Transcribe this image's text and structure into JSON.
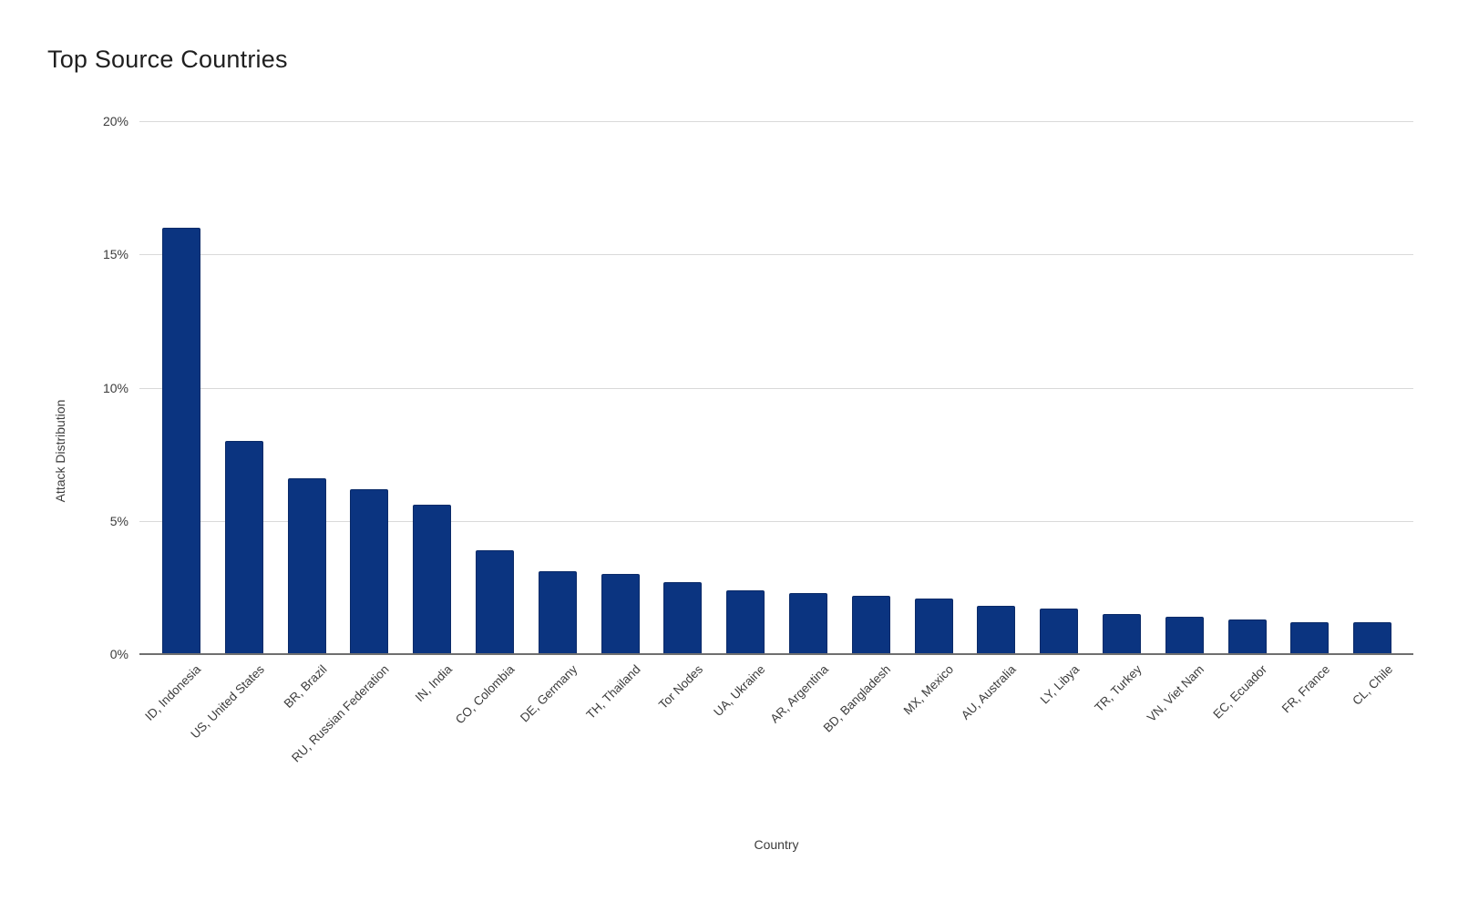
{
  "chart_data": {
    "type": "bar",
    "title": "Top Source Countries",
    "xlabel": "Country",
    "ylabel": "Attack Distribution",
    "ylim": [
      0,
      20
    ],
    "y_ticks": [
      {
        "value": 0,
        "label": "0%"
      },
      {
        "value": 5,
        "label": "5%"
      },
      {
        "value": 10,
        "label": "10%"
      },
      {
        "value": 15,
        "label": "15%"
      },
      {
        "value": 20,
        "label": "20%"
      }
    ],
    "grid": true,
    "legend": "none",
    "bar_color": "#0b3480",
    "categories": [
      "ID, Indonesia",
      "US, United States",
      "BR, Brazil",
      "RU, Russian Federation",
      "IN, India",
      "CO, Colombia",
      "DE, Germany",
      "TH, Thailand",
      "Tor Nodes",
      "UA, Ukraine",
      "AR, Argentina",
      "BD, Bangladesh",
      "MX, Mexico",
      "AU, Australia",
      "LY, Libya",
      "TR, Turkey",
      "VN, Viet Nam",
      "EC, Ecuador",
      "FR, France",
      "CL, Chile"
    ],
    "values": [
      16.0,
      8.0,
      6.6,
      6.2,
      5.6,
      3.9,
      3.1,
      3.0,
      2.7,
      2.4,
      2.3,
      2.2,
      2.1,
      1.8,
      1.7,
      1.5,
      1.4,
      1.3,
      1.2,
      1.2
    ]
  },
  "style": {
    "background": "#ffffff",
    "gridline_color": "#d9d9d9",
    "axis_line_color": "#6f6f6f",
    "label_color": "#3c3c3c",
    "title_color": "#1f1f1f"
  }
}
